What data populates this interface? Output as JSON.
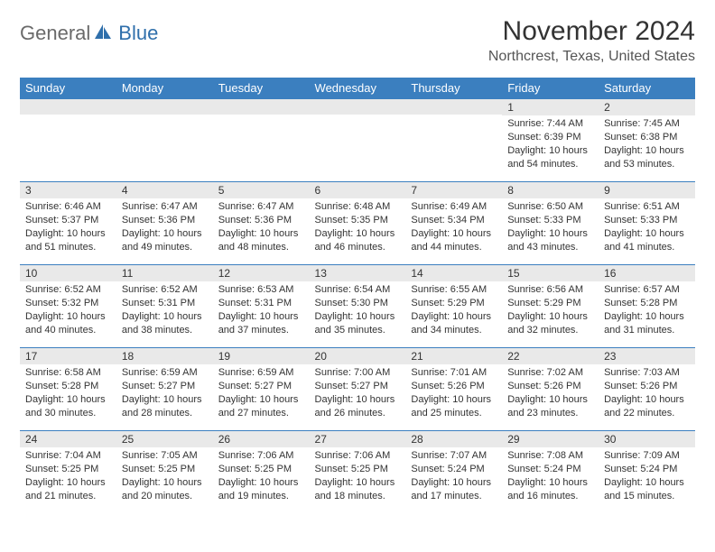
{
  "brand": {
    "part1": "General",
    "part2": "Blue"
  },
  "title": "November 2024",
  "subtitle": "Northcrest, Texas, United States",
  "colors": {
    "header_bg": "#3b7fbf",
    "header_text": "#ffffff",
    "daynum_bg": "#e9e9e9",
    "daynum_border": "#3b7fbf",
    "text": "#333333",
    "brand_gray": "#6a6a6a",
    "brand_blue": "#2f6fab"
  },
  "weekdays": [
    "Sunday",
    "Monday",
    "Tuesday",
    "Wednesday",
    "Thursday",
    "Friday",
    "Saturday"
  ],
  "weeks": [
    [
      null,
      null,
      null,
      null,
      null,
      {
        "n": "1",
        "sr": "7:44 AM",
        "ss": "6:39 PM",
        "dl": "10 hours and 54 minutes."
      },
      {
        "n": "2",
        "sr": "7:45 AM",
        "ss": "6:38 PM",
        "dl": "10 hours and 53 minutes."
      }
    ],
    [
      {
        "n": "3",
        "sr": "6:46 AM",
        "ss": "5:37 PM",
        "dl": "10 hours and 51 minutes."
      },
      {
        "n": "4",
        "sr": "6:47 AM",
        "ss": "5:36 PM",
        "dl": "10 hours and 49 minutes."
      },
      {
        "n": "5",
        "sr": "6:47 AM",
        "ss": "5:36 PM",
        "dl": "10 hours and 48 minutes."
      },
      {
        "n": "6",
        "sr": "6:48 AM",
        "ss": "5:35 PM",
        "dl": "10 hours and 46 minutes."
      },
      {
        "n": "7",
        "sr": "6:49 AM",
        "ss": "5:34 PM",
        "dl": "10 hours and 44 minutes."
      },
      {
        "n": "8",
        "sr": "6:50 AM",
        "ss": "5:33 PM",
        "dl": "10 hours and 43 minutes."
      },
      {
        "n": "9",
        "sr": "6:51 AM",
        "ss": "5:33 PM",
        "dl": "10 hours and 41 minutes."
      }
    ],
    [
      {
        "n": "10",
        "sr": "6:52 AM",
        "ss": "5:32 PM",
        "dl": "10 hours and 40 minutes."
      },
      {
        "n": "11",
        "sr": "6:52 AM",
        "ss": "5:31 PM",
        "dl": "10 hours and 38 minutes."
      },
      {
        "n": "12",
        "sr": "6:53 AM",
        "ss": "5:31 PM",
        "dl": "10 hours and 37 minutes."
      },
      {
        "n": "13",
        "sr": "6:54 AM",
        "ss": "5:30 PM",
        "dl": "10 hours and 35 minutes."
      },
      {
        "n": "14",
        "sr": "6:55 AM",
        "ss": "5:29 PM",
        "dl": "10 hours and 34 minutes."
      },
      {
        "n": "15",
        "sr": "6:56 AM",
        "ss": "5:29 PM",
        "dl": "10 hours and 32 minutes."
      },
      {
        "n": "16",
        "sr": "6:57 AM",
        "ss": "5:28 PM",
        "dl": "10 hours and 31 minutes."
      }
    ],
    [
      {
        "n": "17",
        "sr": "6:58 AM",
        "ss": "5:28 PM",
        "dl": "10 hours and 30 minutes."
      },
      {
        "n": "18",
        "sr": "6:59 AM",
        "ss": "5:27 PM",
        "dl": "10 hours and 28 minutes."
      },
      {
        "n": "19",
        "sr": "6:59 AM",
        "ss": "5:27 PM",
        "dl": "10 hours and 27 minutes."
      },
      {
        "n": "20",
        "sr": "7:00 AM",
        "ss": "5:27 PM",
        "dl": "10 hours and 26 minutes."
      },
      {
        "n": "21",
        "sr": "7:01 AM",
        "ss": "5:26 PM",
        "dl": "10 hours and 25 minutes."
      },
      {
        "n": "22",
        "sr": "7:02 AM",
        "ss": "5:26 PM",
        "dl": "10 hours and 23 minutes."
      },
      {
        "n": "23",
        "sr": "7:03 AM",
        "ss": "5:26 PM",
        "dl": "10 hours and 22 minutes."
      }
    ],
    [
      {
        "n": "24",
        "sr": "7:04 AM",
        "ss": "5:25 PM",
        "dl": "10 hours and 21 minutes."
      },
      {
        "n": "25",
        "sr": "7:05 AM",
        "ss": "5:25 PM",
        "dl": "10 hours and 20 minutes."
      },
      {
        "n": "26",
        "sr": "7:06 AM",
        "ss": "5:25 PM",
        "dl": "10 hours and 19 minutes."
      },
      {
        "n": "27",
        "sr": "7:06 AM",
        "ss": "5:25 PM",
        "dl": "10 hours and 18 minutes."
      },
      {
        "n": "28",
        "sr": "7:07 AM",
        "ss": "5:24 PM",
        "dl": "10 hours and 17 minutes."
      },
      {
        "n": "29",
        "sr": "7:08 AM",
        "ss": "5:24 PM",
        "dl": "10 hours and 16 minutes."
      },
      {
        "n": "30",
        "sr": "7:09 AM",
        "ss": "5:24 PM",
        "dl": "10 hours and 15 minutes."
      }
    ]
  ],
  "labels": {
    "sunrise": "Sunrise:",
    "sunset": "Sunset:",
    "daylight": "Daylight:"
  }
}
